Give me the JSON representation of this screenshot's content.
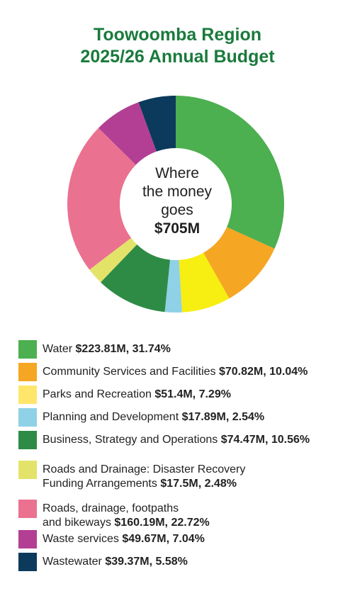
{
  "title_line1": "Toowoomba Region",
  "title_line2": "2025/26 Annual Budget",
  "center": {
    "line1": "Where",
    "line2": "the money",
    "line3": "goes",
    "total": "$705M"
  },
  "chart_data": {
    "type": "pie",
    "title": "Toowoomba Region 2025/26 Annual Budget",
    "total_label": "$705M",
    "slices": [
      {
        "label": "Water",
        "amount": "$223.81M",
        "percent_label": "31.74%",
        "value": 31.74,
        "color": "#4caf50"
      },
      {
        "label": "Community Services and Facilities",
        "amount": "$70.82M",
        "percent_label": "10.04%",
        "value": 10.04,
        "color": "#f5a623"
      },
      {
        "label": "Parks and Recreation",
        "amount": "$51.4M",
        "percent_label": "7.29%",
        "value": 7.29,
        "color": "#f7ee12"
      },
      {
        "label": "Planning and Development",
        "amount": "$17.89M",
        "percent_label": "2.54%",
        "value": 2.54,
        "color": "#8fd1e6"
      },
      {
        "label": "Business, Strategy and Operations",
        "amount": "$74.47M",
        "percent_label": "10.56%",
        "value": 10.56,
        "color": "#2e8b45"
      },
      {
        "label": "Roads and Drainage: Disaster Recovery Funding Arrangements",
        "amount": "$17.5M",
        "percent_label": "2.48%",
        "value": 2.48,
        "color": "#e3e36a"
      },
      {
        "label": "Roads, drainage, footpaths and bikeways",
        "amount": "$160.19M",
        "percent_label": "22.72%",
        "value": 22.72,
        "color": "#ea7190"
      },
      {
        "label": "Waste services",
        "amount": "$49.67M",
        "percent_label": "7.04%",
        "value": 7.04,
        "color": "#b23f93"
      },
      {
        "label": "Wastewater",
        "amount": "$39.37M",
        "percent_label": "5.58%",
        "value": 5.58,
        "color": "#0b3a5c"
      }
    ]
  },
  "legend": [
    {
      "text": "Water ",
      "bold": "$223.81M, 31.74%",
      "color": "#4caf50"
    },
    {
      "text": "Community Services and Facilities ",
      "bold": "$70.82M, 10.04%",
      "color": "#f5a623"
    },
    {
      "text": "Parks and Recreation ",
      "bold": "$51.4M, 7.29%",
      "color": "#ffe66a"
    },
    {
      "text": "Planning and Development ",
      "bold": "$17.89M, 2.54%",
      "color": "#8fd1e6"
    },
    {
      "text": "Business, Strategy and Operations ",
      "bold": "$74.47M, 10.56%",
      "color": "#2e8b45"
    },
    {
      "line1": "Roads and Drainage: Disaster Recovery",
      "text": "Funding Arrangements ",
      "bold": "$17.5M, 2.48%",
      "color": "#e3e36a"
    },
    {
      "line1": "Roads, drainage, footpaths",
      "text": "and bikeways ",
      "bold": "$160.19M, 22.72%",
      "color": "#ea7190"
    },
    {
      "text": "Waste services ",
      "bold": "$49.67M, 7.04%",
      "color": "#b23f93"
    },
    {
      "text": "Wastewater ",
      "bold": "$39.37M, 5.58%",
      "color": "#0b3a5c"
    }
  ]
}
